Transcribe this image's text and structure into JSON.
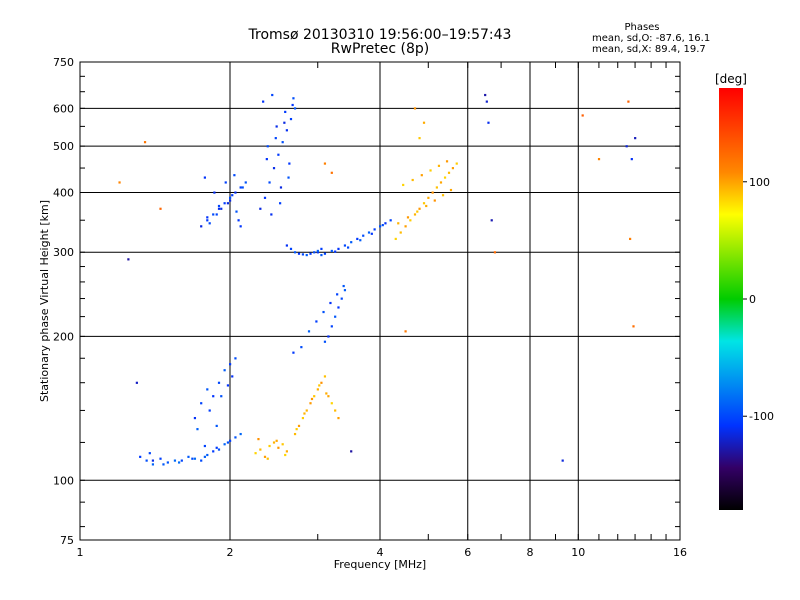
{
  "title_line1": "Tromsø 20130310 19:56:00–19:57:43",
  "title_line2": "RwPretec (8p)",
  "phase_box": {
    "heading": "Phases",
    "line1": "mean, sd,O: -87.6, 16.1",
    "line2": "mean, sd,X:  89.4, 19.7"
  },
  "colorbar": {
    "label": "[deg]",
    "range": [
      -180,
      180
    ],
    "ticks": [
      100,
      0,
      -100
    ]
  },
  "chart_data": {
    "type": "scatter",
    "title": "Tromsø 20130310 19:56:00–19:57:43",
    "subtitle": "RwPretec (8p)",
    "xlabel": "Frequency [MHz]",
    "ylabel": "Stationary phase Virtual Height [km]",
    "xscale": "log",
    "yscale": "log",
    "xlim": [
      1,
      16
    ],
    "ylim": [
      75,
      750
    ],
    "xticks": [
      1,
      2,
      4,
      6,
      8,
      10,
      16
    ],
    "yticks": [
      75,
      100,
      200,
      300,
      400,
      500,
      600,
      750
    ],
    "grid_x": [
      2,
      4,
      6,
      8,
      10,
      16
    ],
    "grid_y": [
      100,
      200,
      300,
      400,
      500,
      600
    ],
    "color_encodes": "phase [deg]",
    "series": [
      {
        "group": "E-O-low",
        "phase": -95,
        "x": [
          1.32,
          1.36,
          1.4,
          1.45,
          1.5,
          1.55,
          1.6,
          1.65,
          1.7,
          1.75,
          1.8,
          1.85,
          1.9,
          1.95,
          2.0,
          2.05,
          2.1,
          1.38,
          1.47,
          1.58,
          1.68,
          1.78,
          1.88,
          1.98
        ],
        "y": [
          112,
          110,
          108,
          111,
          109,
          110,
          110,
          112,
          111,
          110,
          113,
          115,
          116,
          119,
          121,
          123,
          125,
          114,
          108,
          109,
          111,
          112,
          117,
          120
        ]
      },
      {
        "group": "E-O-rise",
        "phase": -100,
        "x": [
          1.7,
          1.75,
          1.8,
          1.85,
          1.9,
          1.95,
          2.0,
          2.05,
          1.72,
          1.82,
          1.92,
          2.02,
          1.78,
          1.88,
          1.98
        ],
        "y": [
          135,
          145,
          155,
          150,
          160,
          170,
          175,
          180,
          128,
          140,
          150,
          165,
          118,
          130,
          158
        ]
      },
      {
        "group": "E-X",
        "phase": 95,
        "x": [
          2.25,
          2.3,
          2.35,
          2.4,
          2.45,
          2.5,
          2.55,
          2.6,
          2.28,
          2.38,
          2.48,
          2.58,
          2.7,
          2.75,
          2.8,
          2.85,
          2.9,
          2.95,
          3.0,
          3.05,
          3.1,
          3.15,
          3.2,
          3.25,
          3.3,
          2.72,
          2.82,
          2.92,
          3.02,
          3.12
        ],
        "y": [
          114,
          116,
          112,
          118,
          120,
          117,
          119,
          115,
          122,
          111,
          121,
          113,
          125,
          130,
          135,
          140,
          145,
          150,
          155,
          160,
          165,
          150,
          145,
          140,
          135,
          128,
          138,
          148,
          158,
          152
        ]
      },
      {
        "group": "F-O-cloud1",
        "phase": -105,
        "x": [
          1.75,
          1.8,
          1.85,
          1.9,
          1.95,
          2.0,
          2.05,
          2.1,
          2.15,
          1.78,
          1.88,
          1.98,
          2.08,
          1.82,
          1.92,
          2.02,
          2.12,
          1.86,
          1.96,
          2.06,
          1.8,
          1.9,
          2.0,
          2.1,
          2.04
        ],
        "y": [
          340,
          350,
          360,
          370,
          380,
          390,
          400,
          410,
          420,
          430,
          360,
          380,
          350,
          345,
          370,
          395,
          410,
          400,
          420,
          365,
          355,
          375,
          385,
          340,
          435
        ]
      },
      {
        "group": "F-O-cloud2",
        "phase": -105,
        "x": [
          2.3,
          2.35,
          2.4,
          2.45,
          2.5,
          2.55,
          2.6,
          2.65,
          2.7,
          2.33,
          2.43,
          2.53,
          2.63,
          2.38,
          2.48,
          2.58,
          2.68,
          2.42,
          2.52,
          2.62,
          2.37,
          2.47,
          2.57,
          2.67
        ],
        "y": [
          370,
          390,
          420,
          450,
          480,
          510,
          540,
          570,
          600,
          620,
          640,
          410,
          460,
          500,
          550,
          590,
          630,
          360,
          380,
          430,
          470,
          520,
          560,
          610
        ]
      },
      {
        "group": "F-O-trace",
        "phase": -100,
        "x": [
          3.0,
          3.1,
          3.2,
          3.3,
          3.4,
          3.5,
          3.6,
          3.7,
          3.8,
          3.9,
          4.0,
          4.1,
          4.2,
          3.05,
          3.25,
          3.45,
          3.65,
          3.85,
          4.05
        ],
        "y": [
          300,
          298,
          302,
          305,
          310,
          315,
          320,
          325,
          330,
          335,
          340,
          345,
          350,
          296,
          301,
          307,
          318,
          328,
          342
        ]
      },
      {
        "group": "F-O-lower",
        "phase": -100,
        "x": [
          2.6,
          2.65,
          2.7,
          2.75,
          2.8,
          2.85,
          2.9,
          2.95,
          3.0,
          3.05,
          3.1,
          3.15,
          3.2,
          3.25,
          3.3,
          3.35,
          3.4,
          2.68,
          2.78,
          2.88,
          2.98,
          3.08,
          3.18,
          3.28,
          3.38
        ],
        "y": [
          310,
          305,
          300,
          298,
          297,
          296,
          298,
          300,
          302,
          305,
          195,
          200,
          210,
          220,
          230,
          240,
          250,
          185,
          190,
          205,
          215,
          225,
          235,
          245,
          255
        ]
      },
      {
        "group": "F-X",
        "phase": 95,
        "x": [
          4.3,
          4.4,
          4.5,
          4.6,
          4.7,
          4.8,
          4.9,
          5.0,
          5.1,
          5.2,
          5.3,
          5.4,
          5.5,
          5.6,
          5.7,
          4.35,
          4.55,
          4.75,
          4.95,
          5.15,
          5.35,
          5.55,
          4.45,
          4.65,
          4.85,
          5.05,
          5.25,
          5.45,
          4.8,
          4.9,
          4.7
        ],
        "y": [
          320,
          330,
          340,
          350,
          360,
          370,
          380,
          390,
          400,
          410,
          420,
          430,
          440,
          450,
          460,
          345,
          355,
          365,
          375,
          385,
          395,
          405,
          415,
          425,
          435,
          445,
          455,
          465,
          520,
          560,
          600
        ]
      },
      {
        "group": "scattered",
        "phase": -120,
        "x": [
          1.25,
          1.3,
          1.4,
          6.5,
          6.55,
          6.6,
          6.7,
          12.5,
          12.8,
          13.0,
          9.3,
          3.5
        ],
        "y": [
          290,
          160,
          110,
          640,
          620,
          560,
          350,
          500,
          470,
          520,
          110,
          115
        ]
      },
      {
        "group": "scattered-X",
        "phase": 120,
        "x": [
          1.2,
          1.35,
          1.45,
          3.1,
          3.2,
          12.6,
          12.7,
          12.9,
          10.2,
          4.5,
          6.8,
          11.0
        ],
        "y": [
          420,
          510,
          370,
          460,
          440,
          620,
          320,
          210,
          580,
          205,
          300,
          470
        ]
      }
    ]
  }
}
